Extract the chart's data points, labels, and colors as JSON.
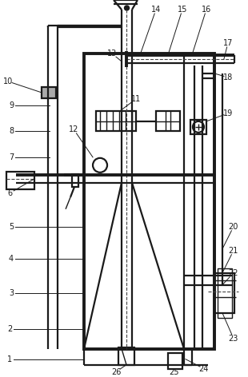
{
  "bg_color": "#ffffff",
  "line_color": "#1a1a1a",
  "lw_thick": 2.8,
  "lw_medium": 1.6,
  "lw_thin": 1.0,
  "label_fontsize": 7.0,
  "figsize": [
    3.1,
    4.72
  ],
  "dpi": 100
}
